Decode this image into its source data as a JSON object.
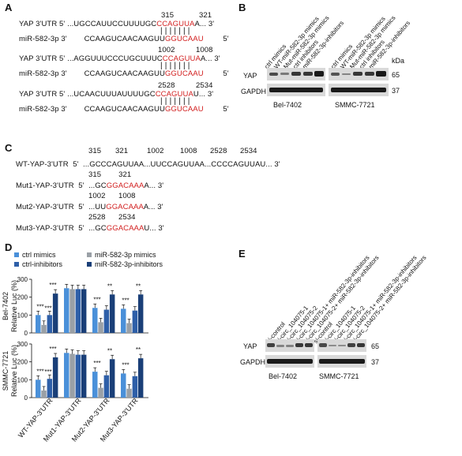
{
  "panels": {
    "A": "A",
    "B": "B",
    "C": "C",
    "D": "D",
    "E": "E"
  },
  "panelA": {
    "rows": [
      {
        "label": "YAP 3'UTR 5'",
        "seq_pre": "...UGCCAUUCCUUUUGC",
        "seq_red": "CCAGUUA",
        "seq_post": "A...",
        "end": "3'",
        "pos1": "315",
        "pos2": "321"
      },
      {
        "label": "miR-582-3p 3'",
        "seq_pre": "CCAAGUCAACAAGUU",
        "seq_red": "GGUCAAU",
        "seq_post": "",
        "end": "5'"
      },
      {
        "label": "YAP 3'UTR 5'",
        "seq_pre": "...AGGUUUCCCUGCUUUC",
        "seq_red": "CCAGUUA",
        "seq_post": "A...",
        "end": "3'",
        "pos1": "1002",
        "pos2": "1008"
      },
      {
        "label": "miR-582-3p 3'",
        "seq_pre": "CCAAGUCAACAAGUU",
        "seq_red": "GGUCAAU",
        "seq_post": "",
        "end": "5'"
      },
      {
        "label": "YAP 3'UTR 5'",
        "seq_pre": "...UCAACUUUAUUUUGC",
        "seq_red": "CCAGUUA",
        "seq_post": "U...",
        "end": "3'",
        "pos1": "2528",
        "pos2": "2534"
      },
      {
        "label": "miR-582-3p 3'",
        "seq_pre": "CCAAGUCAACAAGUU",
        "seq_red": "GGUCAAU",
        "seq_post": "",
        "end": "5'"
      }
    ]
  },
  "panelB": {
    "lanes": [
      "ctrl mimics",
      "WT-miR-582-3p mimics",
      "Mut-miR-582-3p mimics",
      "ctrl inhibitors",
      "miR-582-3p-inhibitors",
      "ctrl mimics",
      "WT-miR-582-3p mimics",
      "Mut-miR-582-3p mimics",
      "ctrl inhibitors",
      "miR-582-3p-inhibitors"
    ],
    "proteins": [
      "YAP",
      "GAPDH"
    ],
    "kda_label": "kDa",
    "kda": [
      "65",
      "37"
    ],
    "cells": [
      "Bel-7402",
      "SMMC-7721"
    ]
  },
  "panelC": {
    "top_positions": [
      "315",
      "321",
      "1002",
      "1008",
      "2528",
      "2534"
    ],
    "wt": {
      "label": "WT-YAP-3'UTR",
      "five": "5'",
      "seq": "...GCCCAGUUAA...UUCCAGUUAA...CCCCAGUUAU...",
      "three": "3'"
    },
    "muts": [
      {
        "label": "Mut1-YAP-3'UTR",
        "five": "5'",
        "pre": "...GC",
        "red": "GGACAAA",
        "post": "A...",
        "three": "3'",
        "p1": "315",
        "p2": "321"
      },
      {
        "label": "Mut2-YAP-3'UTR",
        "five": "5'",
        "pre": "...UU",
        "red": "GGACAAA",
        "post": "A...",
        "three": "3'",
        "p1": "1002",
        "p2": "1008"
      },
      {
        "label": "Mut3-YAP-3'UTR",
        "five": "5'",
        "pre": "...GC",
        "red": "GGACAAA",
        "post": "U...",
        "three": "3'",
        "p1": "2528",
        "p2": "2534"
      }
    ]
  },
  "panelE": {
    "lanes": [
      "si-control",
      "si-circ_104075-1",
      "si-circ_104075-2",
      "si-circ_104075-1+ miR-582-3p-inhibitors",
      "si-circ_104075-2+ miR-582-3p-inhibitors",
      "si-control",
      "si-circ_104075-1",
      "si-circ_104075-2",
      "si-circ_104075-1+ miR-582-3p-inhibitors",
      "si-circ_104075-2+ miR-582-3p-inhibitors"
    ],
    "proteins": [
      "YAP",
      "GAPDH"
    ],
    "kda": [
      "65",
      "37"
    ],
    "cells": [
      "Bel-7402",
      "SMMC-7721"
    ]
  },
  "chart_data": [
    {
      "type": "bar",
      "title": "Bel-7402",
      "ylabel": "Relative Luc (%)",
      "categories": [
        "WT-YAP-3'UTR",
        "Mut1-YAP-3'UTR",
        "Mut2-YAP-3'UTR",
        "Mut3-YAP-3'UTR"
      ],
      "ylim": [
        0,
        300
      ],
      "yticks": [
        "0",
        "100",
        "200",
        "300"
      ],
      "series": [
        {
          "name": "ctrl mimics",
          "color": "#4a90d9",
          "values": [
            100,
            250,
            140,
            135
          ]
        },
        {
          "name": "miR-582-3p mimics",
          "color": "#9aa0a6",
          "values": [
            45,
            245,
            60,
            55
          ]
        },
        {
          "name": "ctrl-inhibitors",
          "color": "#2e5fa8",
          "values": [
            100,
            245,
            130,
            125
          ]
        },
        {
          "name": "miR-582-3p-inhibitors",
          "color": "#1a3f78",
          "values": [
            220,
            245,
            215,
            215
          ]
        }
      ],
      "annotations": [
        "***",
        "***",
        "***",
        "**",
        "***",
        "**",
        "***",
        "**"
      ]
    },
    {
      "type": "bar",
      "title": "SMMC-7721",
      "ylabel": "Relative Luc (%)",
      "categories": [
        "WT-YAP-3'UTR",
        "Mut1-YAP-3'UTR",
        "Mut2-YAP-3'UTR",
        "Mut3-YAP-3'UTR"
      ],
      "ylim": [
        0,
        300
      ],
      "yticks": [
        "0",
        "100",
        "200",
        "300"
      ],
      "series": [
        {
          "name": "ctrl mimics",
          "color": "#4a90d9",
          "values": [
            100,
            250,
            145,
            135
          ]
        },
        {
          "name": "miR-582-3p mimics",
          "color": "#9aa0a6",
          "values": [
            40,
            245,
            55,
            50
          ]
        },
        {
          "name": "ctrl-inhibitors",
          "color": "#2e5fa8",
          "values": [
            105,
            240,
            125,
            120
          ]
        },
        {
          "name": "miR-582-3p-inhibitors",
          "color": "#1a3f78",
          "values": [
            225,
            240,
            215,
            220
          ]
        }
      ],
      "annotations": [
        "***",
        "***",
        "***",
        "**",
        "***",
        "**",
        "***",
        "**"
      ]
    }
  ]
}
